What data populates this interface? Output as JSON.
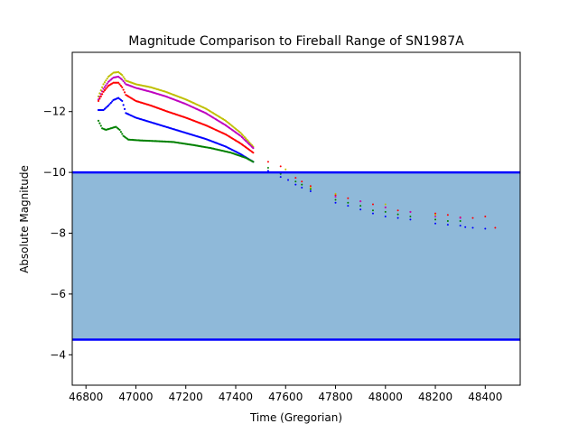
{
  "chart_data": {
    "type": "scatter",
    "title": "Magnitude Comparison to Fireball Range of SN1987A",
    "xlabel": "Time (Gregorian)",
    "ylabel": "Absolute Magnitude",
    "xlim": [
      46745,
      48540
    ],
    "ylim": [
      -13.95,
      -3.0
    ],
    "y_inverted": true,
    "grid": false,
    "x_ticks": [
      46800,
      47000,
      47200,
      47400,
      47600,
      47800,
      48000,
      48200,
      48400
    ],
    "x_tick_labels": [
      "46800",
      "47000",
      "47200",
      "47400",
      "47600",
      "47800",
      "48000",
      "48200",
      "48400"
    ],
    "y_ticks": [
      -12,
      -10,
      -8,
      -6,
      -4
    ],
    "y_tick_labels": [
      "−12",
      "−10",
      "−8",
      "−6",
      "−4"
    ],
    "fireball_range": {
      "bright_limit": -10.0,
      "faint_limit": -4.5,
      "fill_color": "#8fb9d9",
      "line_color": "#0000ff"
    },
    "series": [
      {
        "color": "#bfbf00",
        "points": [
          [
            46850,
            -12.5
          ],
          [
            46870,
            -12.9
          ],
          [
            46890,
            -13.15
          ],
          [
            46910,
            -13.28
          ],
          [
            46930,
            -13.3
          ],
          [
            46945,
            -13.2
          ],
          [
            46960,
            -13.02
          ],
          [
            47000,
            -12.9
          ],
          [
            47060,
            -12.8
          ],
          [
            47120,
            -12.65
          ],
          [
            47200,
            -12.4
          ],
          [
            47280,
            -12.1
          ],
          [
            47360,
            -11.7
          ],
          [
            47420,
            -11.3
          ],
          [
            47470,
            -10.85
          ]
        ]
      },
      {
        "color": "#bf00bf",
        "points": [
          [
            46850,
            -12.4
          ],
          [
            46870,
            -12.75
          ],
          [
            46890,
            -12.98
          ],
          [
            46910,
            -13.12
          ],
          [
            46930,
            -13.15
          ],
          [
            46945,
            -13.05
          ],
          [
            46960,
            -12.9
          ],
          [
            47000,
            -12.78
          ],
          [
            47060,
            -12.65
          ],
          [
            47120,
            -12.5
          ],
          [
            47200,
            -12.25
          ],
          [
            47280,
            -11.95
          ],
          [
            47360,
            -11.55
          ],
          [
            47420,
            -11.2
          ],
          [
            47470,
            -10.8
          ]
        ]
      },
      {
        "color": "#ff0000",
        "points": [
          [
            46850,
            -12.35
          ],
          [
            46870,
            -12.65
          ],
          [
            46890,
            -12.85
          ],
          [
            46910,
            -12.95
          ],
          [
            46930,
            -12.95
          ],
          [
            46945,
            -12.8
          ],
          [
            46960,
            -12.55
          ],
          [
            47000,
            -12.35
          ],
          [
            47060,
            -12.2
          ],
          [
            47120,
            -12.02
          ],
          [
            47200,
            -11.8
          ],
          [
            47280,
            -11.55
          ],
          [
            47360,
            -11.25
          ],
          [
            47420,
            -10.95
          ],
          [
            47470,
            -10.65
          ]
        ]
      },
      {
        "color": "#0000ff",
        "points": [
          [
            46850,
            -12.05
          ],
          [
            46870,
            -12.05
          ],
          [
            46890,
            -12.2
          ],
          [
            46910,
            -12.38
          ],
          [
            46930,
            -12.45
          ],
          [
            46945,
            -12.35
          ],
          [
            46960,
            -11.95
          ],
          [
            47000,
            -11.8
          ],
          [
            47060,
            -11.65
          ],
          [
            47120,
            -11.5
          ],
          [
            47200,
            -11.3
          ],
          [
            47280,
            -11.1
          ],
          [
            47360,
            -10.85
          ],
          [
            47420,
            -10.6
          ],
          [
            47470,
            -10.35
          ]
        ]
      },
      {
        "color": "#008000",
        "points": [
          [
            46850,
            -11.7
          ],
          [
            46865,
            -11.45
          ],
          [
            46880,
            -11.4
          ],
          [
            46900,
            -11.45
          ],
          [
            46920,
            -11.5
          ],
          [
            46935,
            -11.4
          ],
          [
            46950,
            -11.2
          ],
          [
            46970,
            -11.08
          ],
          [
            47020,
            -11.05
          ],
          [
            47080,
            -11.03
          ],
          [
            47150,
            -11.0
          ],
          [
            47230,
            -10.9
          ],
          [
            47300,
            -10.8
          ],
          [
            47380,
            -10.65
          ],
          [
            47440,
            -10.48
          ],
          [
            47470,
            -10.35
          ]
        ]
      }
    ],
    "late_points": [
      {
        "color": "#ff0000",
        "points": [
          [
            47530,
            -10.35
          ],
          [
            47580,
            -10.2
          ],
          [
            47640,
            -9.82
          ],
          [
            47665,
            -9.7
          ],
          [
            47700,
            -9.55
          ],
          [
            47800,
            -9.25
          ],
          [
            47850,
            -9.15
          ],
          [
            47900,
            -9.05
          ],
          [
            47950,
            -8.95
          ],
          [
            48000,
            -8.85
          ],
          [
            48050,
            -8.75
          ],
          [
            48100,
            -8.7
          ],
          [
            48200,
            -8.65
          ],
          [
            48250,
            -8.6
          ],
          [
            48300,
            -8.52
          ],
          [
            48350,
            -8.5
          ],
          [
            48400,
            -8.55
          ],
          [
            48440,
            -8.18
          ]
        ]
      },
      {
        "color": "#008000",
        "points": [
          [
            47530,
            -10.15
          ],
          [
            47580,
            -9.95
          ],
          [
            47640,
            -9.7
          ],
          [
            47665,
            -9.6
          ],
          [
            47700,
            -9.45
          ],
          [
            47800,
            -9.1
          ],
          [
            47850,
            -9.0
          ],
          [
            47900,
            -8.9
          ],
          [
            47950,
            -8.75
          ],
          [
            48000,
            -8.7
          ],
          [
            48050,
            -8.62
          ],
          [
            48100,
            -8.55
          ],
          [
            48200,
            -8.45
          ],
          [
            48250,
            -8.4
          ],
          [
            48300,
            -8.4
          ]
        ]
      },
      {
        "color": "#0000ff",
        "points": [
          [
            47530,
            -10.05
          ],
          [
            47580,
            -9.85
          ],
          [
            47610,
            -9.75
          ],
          [
            47640,
            -9.6
          ],
          [
            47665,
            -9.5
          ],
          [
            47700,
            -9.38
          ],
          [
            47800,
            -9.0
          ],
          [
            47850,
            -8.9
          ],
          [
            47900,
            -8.78
          ],
          [
            47950,
            -8.65
          ],
          [
            48000,
            -8.55
          ],
          [
            48050,
            -8.5
          ],
          [
            48100,
            -8.45
          ],
          [
            48200,
            -8.32
          ],
          [
            48250,
            -8.28
          ],
          [
            48300,
            -8.25
          ],
          [
            48320,
            -8.2
          ],
          [
            48350,
            -8.18
          ],
          [
            48400,
            -8.15
          ]
        ]
      },
      {
        "color": "#bf00bf",
        "points": [
          [
            47800,
            -9.2
          ],
          [
            47900,
            -9.05
          ],
          [
            48000,
            -8.85
          ],
          [
            48100,
            -8.7
          ],
          [
            48200,
            -8.55
          ],
          [
            48300,
            -8.5
          ]
        ]
      },
      {
        "color": "#bfbf00",
        "points": [
          [
            47600,
            -10.1
          ],
          [
            47700,
            -9.5
          ],
          [
            47800,
            -9.3
          ],
          [
            48000,
            -8.95
          ],
          [
            48200,
            -8.6
          ]
        ]
      }
    ]
  }
}
